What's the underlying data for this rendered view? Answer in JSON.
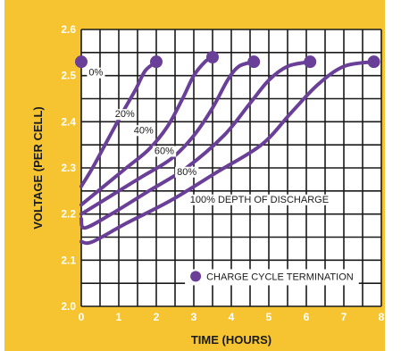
{
  "chart_data": {
    "type": "line",
    "xlabel": "TIME (HOURS)",
    "ylabel": "VOLTAGE (PER CELL)",
    "xlim": [
      0,
      8
    ],
    "ylim": [
      2.0,
      2.6
    ],
    "x_ticks": [
      "0",
      "1",
      "2",
      "3",
      "4",
      "5",
      "6",
      "7",
      "8"
    ],
    "y_ticks": [
      "2.0",
      "2.1",
      "2.2",
      "2.3",
      "2.4",
      "2.5",
      "2.6"
    ],
    "grid": true,
    "colors": {
      "background": "#f6c431",
      "plot": "#ffffff",
      "grid": "#1a1a1a",
      "line": "#6a3f97",
      "marker": "#6a3f97"
    },
    "legend": {
      "label": "CHARGE CYCLE TERMINATION",
      "position": "bottom-right",
      "marker": "circle"
    },
    "series": [
      {
        "name": "0%",
        "x": [
          0
        ],
        "y": [
          2.53
        ],
        "end": [
          0,
          2.53
        ]
      },
      {
        "name": "20%",
        "x": [
          0,
          0.3,
          0.7,
          1.1,
          1.45,
          1.7,
          2.0
        ],
        "y": [
          2.26,
          2.3,
          2.36,
          2.42,
          2.47,
          2.51,
          2.53
        ]
      },
      {
        "name": "40%",
        "x": [
          0,
          0.6,
          1.2,
          1.8,
          2.3,
          2.7,
          3.0,
          3.3,
          3.5
        ],
        "y": [
          2.22,
          2.26,
          2.3,
          2.34,
          2.39,
          2.45,
          2.5,
          2.53,
          2.54
        ]
      },
      {
        "name": "60%",
        "x": [
          0,
          0.8,
          1.6,
          2.4,
          3.0,
          3.5,
          3.9,
          4.2,
          4.6
        ],
        "y": [
          2.2,
          2.24,
          2.28,
          2.32,
          2.37,
          2.43,
          2.49,
          2.52,
          2.53
        ]
      },
      {
        "name": "80%",
        "x": [
          0,
          0.1,
          0.8,
          1.8,
          2.8,
          3.8,
          4.5,
          5.0,
          5.5,
          6.1
        ],
        "y": [
          2.19,
          2.17,
          2.2,
          2.25,
          2.3,
          2.37,
          2.44,
          2.49,
          2.52,
          2.53
        ]
      },
      {
        "name": "100% DEPTH OF DISCHARGE",
        "x": [
          0,
          0.3,
          1.2,
          2.4,
          3.6,
          4.8,
          5.6,
          6.3,
          7.0,
          7.8
        ],
        "y": [
          2.14,
          2.14,
          2.18,
          2.23,
          2.29,
          2.35,
          2.42,
          2.48,
          2.52,
          2.53
        ]
      }
    ]
  }
}
